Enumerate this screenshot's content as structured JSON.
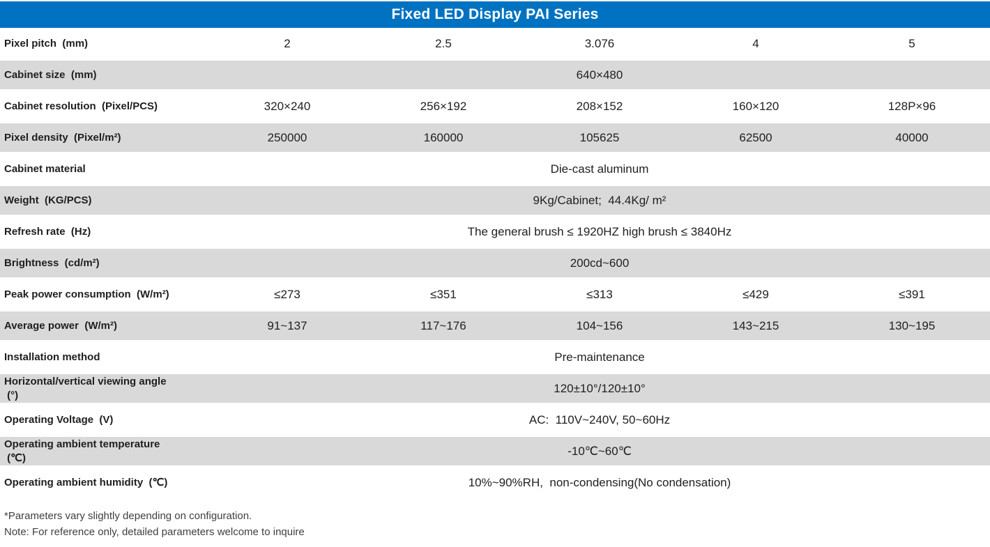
{
  "header": {
    "title": "Fixed LED Display PAI Series"
  },
  "colors": {
    "header_bg": "#0072C1",
    "header_text": "#FFFFFF",
    "row_shade": "#D9D9D9",
    "label_text": "#1F1F1F",
    "value_text": "#212121",
    "note_text": "#3F3F3F"
  },
  "table": {
    "rows": [
      {
        "label": "Pixel pitch  (mm)",
        "type": "cols",
        "shade": false,
        "values": [
          "2",
          "2.5",
          "3.076",
          "4",
          "5"
        ]
      },
      {
        "label": "Cabinet size  (mm)",
        "type": "merged",
        "shade": true,
        "value": "640×480"
      },
      {
        "label": "Cabinet resolution  (Pixel/PCS)",
        "type": "cols",
        "shade": false,
        "values": [
          "320×240",
          "256×192",
          "208×152",
          "160×120",
          "128P×96"
        ]
      },
      {
        "label": "Pixel density  (Pixel/m²)",
        "type": "cols",
        "shade": true,
        "values": [
          "250000",
          "160000",
          "105625",
          "62500",
          "40000"
        ]
      },
      {
        "label": "Cabinet material",
        "type": "merged",
        "shade": false,
        "value": "Die-cast aluminum"
      },
      {
        "label": "Weight  (KG/PCS)",
        "type": "merged",
        "shade": true,
        "value": "9Kg/Cabinet;  44.4Kg/ m²"
      },
      {
        "label": "Refresh rate  (Hz)",
        "type": "merged",
        "shade": false,
        "value": "The general brush ≤ 1920HZ high brush ≤ 3840Hz"
      },
      {
        "label": "Brightness  (cd/m²)",
        "type": "merged",
        "shade": true,
        "value": "200cd~600"
      },
      {
        "label": "Peak power consumption  (W/m²)",
        "type": "cols",
        "shade": false,
        "values": [
          "≤273",
          "≤351",
          "≤313",
          "≤429",
          "≤391"
        ]
      },
      {
        "label": "Average power  (W/m²)",
        "type": "cols",
        "shade": true,
        "values": [
          "91~137",
          "117~176",
          "104~156",
          "143~215",
          "130~195"
        ]
      },
      {
        "label": "Installation method",
        "type": "merged",
        "shade": false,
        "value": "Pre-maintenance"
      },
      {
        "label": "Horizontal/vertical viewing angle\n (°)",
        "type": "merged",
        "shade": true,
        "value": "120±10°/120±10°"
      },
      {
        "label": "Operating Voltage  (V)",
        "type": "merged",
        "shade": false,
        "value": "AC:  110V~240V, 50~60Hz"
      },
      {
        "label": "Operating ambient temperature\n (℃)",
        "type": "merged",
        "shade": true,
        "value": "-10℃~60℃"
      },
      {
        "label": "Operating ambient humidity  (℃)",
        "type": "merged",
        "shade": false,
        "value": "10%~90%RH,  non-condensing(No condensation)"
      }
    ]
  },
  "footer": {
    "note1": "*Parameters vary slightly depending on configuration.",
    "note2": "Note: For reference only, detailed parameters welcome to inquire"
  }
}
